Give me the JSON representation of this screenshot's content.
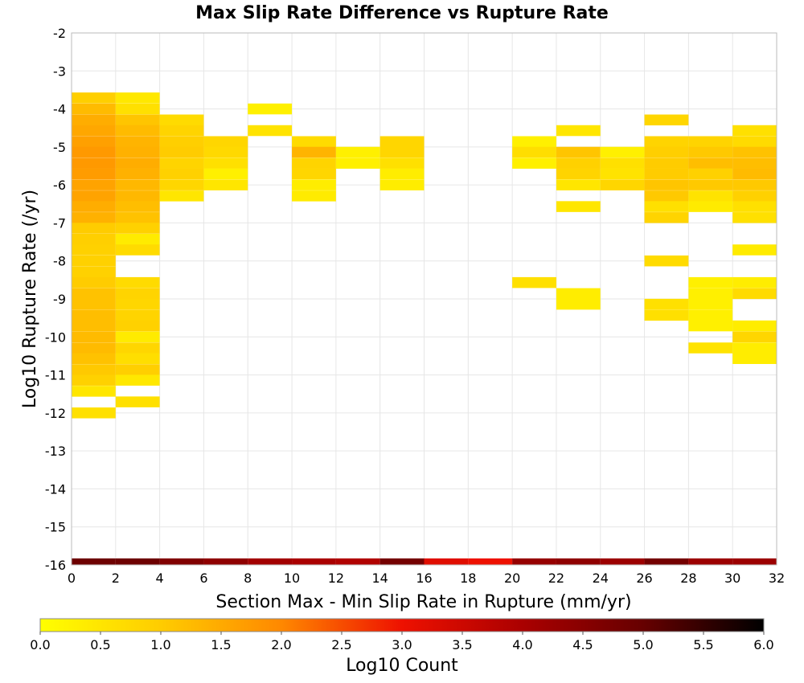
{
  "chart_data": {
    "type": "heatmap",
    "title": "Max Slip Rate Difference vs Rupture Rate",
    "xlabel": "Section Max - Min Slip Rate in Rupture (mm/yr)",
    "ylabel": "Log10 Rupture Rate (/yr)",
    "xlim": [
      0,
      32
    ],
    "ylim": [
      -16,
      -2
    ],
    "x_ticks": [
      "0",
      "2",
      "4",
      "6",
      "8",
      "10",
      "12",
      "14",
      "16",
      "18",
      "20",
      "22",
      "24",
      "26",
      "28",
      "30",
      "32"
    ],
    "y_ticks": [
      "-2",
      "-3",
      "-4",
      "-5",
      "-6",
      "-7",
      "-8",
      "-9",
      "-10",
      "-11",
      "-12",
      "-13",
      "-14",
      "-15",
      "-16"
    ],
    "x_bin_width": 2,
    "y_bin_height": 0.2857,
    "colorbar": {
      "label": "Log10 Count",
      "min": 0.0,
      "max": 6.0,
      "ticks": [
        "0.0",
        "0.5",
        "1.0",
        "1.5",
        "2.0",
        "2.5",
        "3.0",
        "3.5",
        "4.0",
        "4.5",
        "5.0",
        "5.5",
        "6.0"
      ]
    },
    "bottom_row": [
      {
        "x": 0,
        "value": 4.9
      },
      {
        "x": 2,
        "value": 4.9
      },
      {
        "x": 4,
        "value": 4.6
      },
      {
        "x": 6,
        "value": 4.4
      },
      {
        "x": 8,
        "value": 4.1
      },
      {
        "x": 10,
        "value": 4.0
      },
      {
        "x": 12,
        "value": 3.9
      },
      {
        "x": 14,
        "value": 4.8
      },
      {
        "x": 16,
        "value": 3.2
      },
      {
        "x": 18,
        "value": 3.0
      },
      {
        "x": 20,
        "value": 4.3
      },
      {
        "x": 22,
        "value": 4.4
      },
      {
        "x": 24,
        "value": 4.2
      },
      {
        "x": 26,
        "value": 4.8
      },
      {
        "x": 28,
        "value": 4.2
      },
      {
        "x": 30,
        "value": 4.2
      }
    ],
    "cells": [
      {
        "x": 0,
        "y": -3.71,
        "value": 0.95
      },
      {
        "x": 0,
        "y": -4.0,
        "value": 1.25
      },
      {
        "x": 0,
        "y": -4.29,
        "value": 1.45
      },
      {
        "x": 0,
        "y": -4.57,
        "value": 1.55
      },
      {
        "x": 0,
        "y": -4.86,
        "value": 1.65
      },
      {
        "x": 0,
        "y": -5.14,
        "value": 1.75
      },
      {
        "x": 0,
        "y": -5.43,
        "value": 1.75
      },
      {
        "x": 0,
        "y": -5.71,
        "value": 1.7
      },
      {
        "x": 0,
        "y": -6.0,
        "value": 1.6
      },
      {
        "x": 0,
        "y": -6.29,
        "value": 1.6
      },
      {
        "x": 0,
        "y": -6.57,
        "value": 1.45
      },
      {
        "x": 0,
        "y": -6.86,
        "value": 1.4
      },
      {
        "x": 0,
        "y": -7.14,
        "value": 1.0
      },
      {
        "x": 0,
        "y": -7.43,
        "value": 0.95
      },
      {
        "x": 0,
        "y": -7.71,
        "value": 0.9
      },
      {
        "x": 0,
        "y": -8.0,
        "value": 0.9
      },
      {
        "x": 0,
        "y": -8.29,
        "value": 0.9
      },
      {
        "x": 0,
        "y": -8.57,
        "value": 1.0
      },
      {
        "x": 0,
        "y": -8.86,
        "value": 1.15
      },
      {
        "x": 0,
        "y": -9.14,
        "value": 1.15
      },
      {
        "x": 0,
        "y": -9.43,
        "value": 1.2
      },
      {
        "x": 0,
        "y": -9.71,
        "value": 1.2
      },
      {
        "x": 0,
        "y": -10.0,
        "value": 1.25
      },
      {
        "x": 0,
        "y": -10.29,
        "value": 1.25
      },
      {
        "x": 0,
        "y": -10.57,
        "value": 1.15
      },
      {
        "x": 0,
        "y": -10.86,
        "value": 1.05
      },
      {
        "x": 0,
        "y": -11.14,
        "value": 0.9
      },
      {
        "x": 0,
        "y": -11.43,
        "value": 0.5
      },
      {
        "x": 0,
        "y": -12.0,
        "value": 0.6
      },
      {
        "x": 2,
        "y": -3.71,
        "value": 0.45
      },
      {
        "x": 2,
        "y": -4.0,
        "value": 0.6
      },
      {
        "x": 2,
        "y": -4.29,
        "value": 1.1
      },
      {
        "x": 2,
        "y": -4.57,
        "value": 1.25
      },
      {
        "x": 2,
        "y": -4.86,
        "value": 1.35
      },
      {
        "x": 2,
        "y": -5.14,
        "value": 1.4
      },
      {
        "x": 2,
        "y": -5.43,
        "value": 1.45
      },
      {
        "x": 2,
        "y": -5.71,
        "value": 1.4
      },
      {
        "x": 2,
        "y": -6.0,
        "value": 1.3
      },
      {
        "x": 2,
        "y": -6.29,
        "value": 1.3
      },
      {
        "x": 2,
        "y": -6.57,
        "value": 1.2
      },
      {
        "x": 2,
        "y": -6.86,
        "value": 1.15
      },
      {
        "x": 2,
        "y": -7.14,
        "value": 0.9
      },
      {
        "x": 2,
        "y": -7.43,
        "value": 0.4
      },
      {
        "x": 2,
        "y": -7.71,
        "value": 0.7
      },
      {
        "x": 2,
        "y": -8.57,
        "value": 0.7
      },
      {
        "x": 2,
        "y": -8.86,
        "value": 0.85
      },
      {
        "x": 2,
        "y": -9.14,
        "value": 0.8
      },
      {
        "x": 2,
        "y": -9.43,
        "value": 0.85
      },
      {
        "x": 2,
        "y": -9.71,
        "value": 0.9
      },
      {
        "x": 2,
        "y": -10.0,
        "value": 0.4
      },
      {
        "x": 2,
        "y": -10.29,
        "value": 0.8
      },
      {
        "x": 2,
        "y": -10.57,
        "value": 0.65
      },
      {
        "x": 2,
        "y": -10.86,
        "value": 0.95
      },
      {
        "x": 2,
        "y": -11.14,
        "value": 0.45
      },
      {
        "x": 2,
        "y": -11.71,
        "value": 0.6
      },
      {
        "x": 4,
        "y": -4.29,
        "value": 0.7
      },
      {
        "x": 4,
        "y": -4.57,
        "value": 0.85
      },
      {
        "x": 4,
        "y": -4.86,
        "value": 0.95
      },
      {
        "x": 4,
        "y": -5.14,
        "value": 1.0
      },
      {
        "x": 4,
        "y": -5.43,
        "value": 0.85
      },
      {
        "x": 4,
        "y": -5.71,
        "value": 0.9
      },
      {
        "x": 4,
        "y": -6.0,
        "value": 0.8
      },
      {
        "x": 4,
        "y": -6.29,
        "value": 0.5
      },
      {
        "x": 6,
        "y": -4.86,
        "value": 0.8
      },
      {
        "x": 6,
        "y": -5.14,
        "value": 0.75
      },
      {
        "x": 6,
        "y": -5.43,
        "value": 0.6
      },
      {
        "x": 6,
        "y": -5.71,
        "value": 0.3
      },
      {
        "x": 6,
        "y": -6.0,
        "value": 0.5
      },
      {
        "x": 8,
        "y": -4.0,
        "value": 0.3
      },
      {
        "x": 8,
        "y": -4.57,
        "value": 0.55
      },
      {
        "x": 10,
        "y": -4.86,
        "value": 0.7
      },
      {
        "x": 10,
        "y": -5.14,
        "value": 1.35
      },
      {
        "x": 10,
        "y": -5.43,
        "value": 0.85
      },
      {
        "x": 10,
        "y": -5.71,
        "value": 0.8
      },
      {
        "x": 10,
        "y": -6.0,
        "value": 0.35
      },
      {
        "x": 10,
        "y": -6.29,
        "value": 0.4
      },
      {
        "x": 12,
        "y": -5.14,
        "value": 0.3
      },
      {
        "x": 12,
        "y": -5.43,
        "value": 0.3
      },
      {
        "x": 14,
        "y": -4.86,
        "value": 0.8
      },
      {
        "x": 14,
        "y": -5.14,
        "value": 0.8
      },
      {
        "x": 14,
        "y": -5.43,
        "value": 0.6
      },
      {
        "x": 14,
        "y": -5.71,
        "value": 0.35
      },
      {
        "x": 14,
        "y": -6.0,
        "value": 0.35
      },
      {
        "x": 20,
        "y": -4.86,
        "value": 0.3
      },
      {
        "x": 20,
        "y": -5.14,
        "value": 0.65
      },
      {
        "x": 20,
        "y": -5.43,
        "value": 0.3
      },
      {
        "x": 20,
        "y": -8.57,
        "value": 0.6
      },
      {
        "x": 22,
        "y": -4.57,
        "value": 0.5
      },
      {
        "x": 22,
        "y": -5.14,
        "value": 1.1
      },
      {
        "x": 22,
        "y": -5.43,
        "value": 0.9
      },
      {
        "x": 22,
        "y": -5.71,
        "value": 0.85
      },
      {
        "x": 22,
        "y": -6.0,
        "value": 0.5
      },
      {
        "x": 22,
        "y": -6.57,
        "value": 0.5
      },
      {
        "x": 22,
        "y": -8.86,
        "value": 0.35
      },
      {
        "x": 22,
        "y": -9.14,
        "value": 0.35
      },
      {
        "x": 24,
        "y": -5.14,
        "value": 0.3
      },
      {
        "x": 24,
        "y": -5.43,
        "value": 0.6
      },
      {
        "x": 24,
        "y": -5.71,
        "value": 0.55
      },
      {
        "x": 24,
        "y": -6.0,
        "value": 0.8
      },
      {
        "x": 26,
        "y": -4.29,
        "value": 0.8
      },
      {
        "x": 26,
        "y": -4.86,
        "value": 0.85
      },
      {
        "x": 26,
        "y": -5.14,
        "value": 0.95
      },
      {
        "x": 26,
        "y": -5.43,
        "value": 1.0
      },
      {
        "x": 26,
        "y": -5.71,
        "value": 1.0
      },
      {
        "x": 26,
        "y": -6.0,
        "value": 1.1
      },
      {
        "x": 26,
        "y": -6.29,
        "value": 1.05
      },
      {
        "x": 26,
        "y": -6.57,
        "value": 0.6
      },
      {
        "x": 26,
        "y": -6.86,
        "value": 0.85
      },
      {
        "x": 26,
        "y": -8.0,
        "value": 0.7
      },
      {
        "x": 26,
        "y": -9.14,
        "value": 0.6
      },
      {
        "x": 26,
        "y": -9.43,
        "value": 0.6
      },
      {
        "x": 28,
        "y": -4.86,
        "value": 0.85
      },
      {
        "x": 28,
        "y": -5.14,
        "value": 1.05
      },
      {
        "x": 28,
        "y": -5.43,
        "value": 1.2
      },
      {
        "x": 28,
        "y": -5.71,
        "value": 0.9
      },
      {
        "x": 28,
        "y": -6.0,
        "value": 1.05
      },
      {
        "x": 28,
        "y": -6.29,
        "value": 0.55
      },
      {
        "x": 28,
        "y": -6.57,
        "value": 0.4
      },
      {
        "x": 28,
        "y": -8.57,
        "value": 0.3
      },
      {
        "x": 28,
        "y": -8.86,
        "value": 0.3
      },
      {
        "x": 28,
        "y": -9.14,
        "value": 0.3
      },
      {
        "x": 28,
        "y": -9.43,
        "value": 0.3
      },
      {
        "x": 28,
        "y": -9.71,
        "value": 0.3
      },
      {
        "x": 28,
        "y": -10.29,
        "value": 0.55
      },
      {
        "x": 30,
        "y": -4.57,
        "value": 0.6
      },
      {
        "x": 30,
        "y": -4.86,
        "value": 0.7
      },
      {
        "x": 30,
        "y": -5.14,
        "value": 1.15
      },
      {
        "x": 30,
        "y": -5.43,
        "value": 1.2
      },
      {
        "x": 30,
        "y": -5.71,
        "value": 1.25
      },
      {
        "x": 30,
        "y": -6.0,
        "value": 1.05
      },
      {
        "x": 30,
        "y": -6.29,
        "value": 0.9
      },
      {
        "x": 30,
        "y": -6.57,
        "value": 0.6
      },
      {
        "x": 30,
        "y": -6.86,
        "value": 0.6
      },
      {
        "x": 30,
        "y": -7.71,
        "value": 0.4
      },
      {
        "x": 30,
        "y": -8.57,
        "value": 0.35
      },
      {
        "x": 30,
        "y": -8.86,
        "value": 0.7
      },
      {
        "x": 30,
        "y": -9.71,
        "value": 0.35
      },
      {
        "x": 30,
        "y": -10.0,
        "value": 0.8
      },
      {
        "x": 30,
        "y": -10.29,
        "value": 0.35
      },
      {
        "x": 30,
        "y": -10.57,
        "value": 0.35
      }
    ]
  }
}
